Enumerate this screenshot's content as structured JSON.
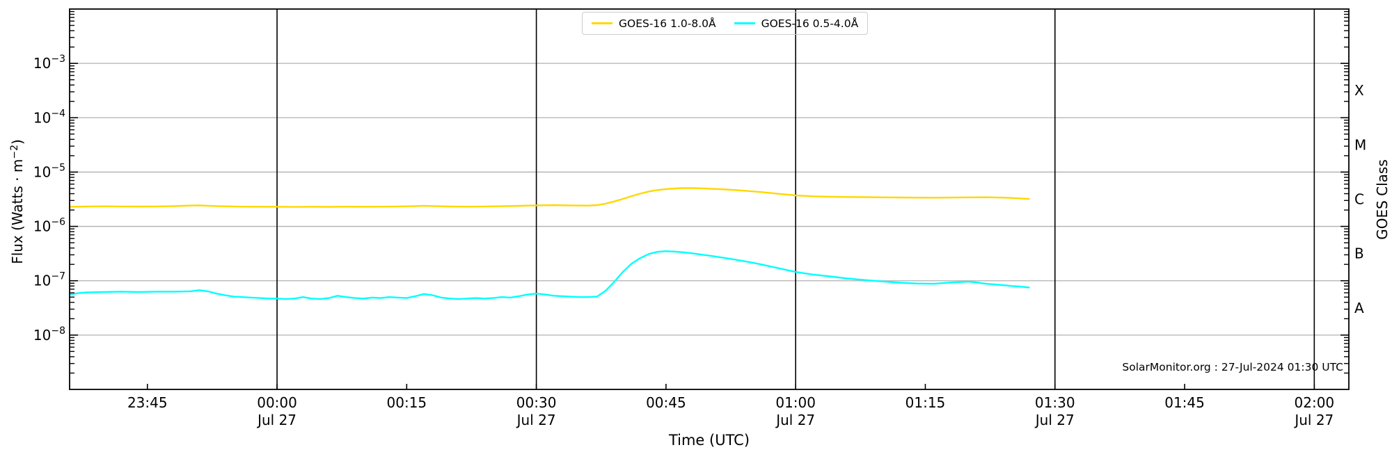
{
  "chart": {
    "annotation": "SolarMonitor.org : 27-Jul-2024 01:30 UTC"
  },
  "axes": {
    "xlabel": "Time (UTC)",
    "ylabel_prefix": "Flux (Watts · m",
    "ylabel_sup": "−2",
    "ylabel_suffix": ")",
    "right_label": "GOES Class"
  },
  "chart_data": {
    "type": "line",
    "title": "",
    "xlabel": "Time (UTC)",
    "ylabel": "Flux (Watts · m−2)",
    "right_axis_label": "GOES Class",
    "x_unit": "minutes relative to 00:00 UTC 27-Jul-2024",
    "xlim": [
      -24,
      124
    ],
    "ylim": [
      1e-09,
      0.01
    ],
    "grid": "horizontal-decades",
    "legend_position": "upper center",
    "colors": {
      "grid": "#b0b0b0",
      "frame": "#000000",
      "day_line": "#000000"
    },
    "y_tick_exponents": [
      -3,
      -4,
      -5,
      -6,
      -7,
      -8
    ],
    "x_ticks": [
      {
        "t": -15,
        "label": "23:45"
      },
      {
        "t": 0,
        "label": "00:00",
        "sub": "Jul 27"
      },
      {
        "t": 15,
        "label": "00:15"
      },
      {
        "t": 30,
        "label": "00:30",
        "sub": "Jul 27"
      },
      {
        "t": 45,
        "label": "00:45"
      },
      {
        "t": 60,
        "label": "01:00",
        "sub": "Jul 27"
      },
      {
        "t": 75,
        "label": "01:15"
      },
      {
        "t": 90,
        "label": "01:30",
        "sub": "Jul 27"
      },
      {
        "t": 105,
        "label": "01:45"
      },
      {
        "t": 120,
        "label": "02:00",
        "sub": "Jul 27"
      }
    ],
    "day_line_minutes": [
      0,
      30,
      60,
      90,
      120
    ],
    "goes_classes": [
      {
        "label": "A",
        "value": 3.162e-08
      },
      {
        "label": "B",
        "value": 3.162e-07
      },
      {
        "label": "C",
        "value": 3.162e-06
      },
      {
        "label": "M",
        "value": 3.162e-05
      },
      {
        "label": "X",
        "value": 0.0003162
      }
    ],
    "series": [
      {
        "name": "GOES-16 1.0-8.0Å",
        "color": "#FFD700",
        "points": [
          [
            -24,
            2.3e-06
          ],
          [
            -22,
            2.32e-06
          ],
          [
            -20,
            2.34e-06
          ],
          [
            -18,
            2.33e-06
          ],
          [
            -16,
            2.32e-06
          ],
          [
            -14,
            2.33e-06
          ],
          [
            -12,
            2.36e-06
          ],
          [
            -10,
            2.42e-06
          ],
          [
            -9,
            2.44e-06
          ],
          [
            -8,
            2.4e-06
          ],
          [
            -7,
            2.36e-06
          ],
          [
            -6,
            2.34e-06
          ],
          [
            -4,
            2.31e-06
          ],
          [
            -2,
            2.3e-06
          ],
          [
            0,
            2.3e-06
          ],
          [
            2,
            2.28e-06
          ],
          [
            4,
            2.3e-06
          ],
          [
            6,
            2.29e-06
          ],
          [
            8,
            2.31e-06
          ],
          [
            10,
            2.3e-06
          ],
          [
            12,
            2.31e-06
          ],
          [
            14,
            2.33e-06
          ],
          [
            16,
            2.36e-06
          ],
          [
            17,
            2.4e-06
          ],
          [
            18,
            2.37e-06
          ],
          [
            20,
            2.32e-06
          ],
          [
            22,
            2.31e-06
          ],
          [
            24,
            2.33e-06
          ],
          [
            26,
            2.35e-06
          ],
          [
            28,
            2.39e-06
          ],
          [
            30,
            2.43e-06
          ],
          [
            32,
            2.46e-06
          ],
          [
            34,
            2.43e-06
          ],
          [
            36,
            2.41e-06
          ],
          [
            37,
            2.46e-06
          ],
          [
            38,
            2.62e-06
          ],
          [
            39,
            2.88e-06
          ],
          [
            40,
            3.2e-06
          ],
          [
            41,
            3.6e-06
          ],
          [
            42,
            4e-06
          ],
          [
            43,
            4.38e-06
          ],
          [
            44,
            4.66e-06
          ],
          [
            45,
            4.86e-06
          ],
          [
            46,
            5e-06
          ],
          [
            47,
            5.06e-06
          ],
          [
            48,
            5.06e-06
          ],
          [
            49,
            5.02e-06
          ],
          [
            50,
            4.95e-06
          ],
          [
            52,
            4.78e-06
          ],
          [
            54,
            4.55e-06
          ],
          [
            56,
            4.28e-06
          ],
          [
            58,
            3.98e-06
          ],
          [
            60,
            3.72e-06
          ],
          [
            62,
            3.58e-06
          ],
          [
            64,
            3.52e-06
          ],
          [
            66,
            3.48e-06
          ],
          [
            68,
            3.45e-06
          ],
          [
            70,
            3.42e-06
          ],
          [
            72,
            3.4e-06
          ],
          [
            74,
            3.38e-06
          ],
          [
            76,
            3.37e-06
          ],
          [
            78,
            3.39e-06
          ],
          [
            80,
            3.42e-06
          ],
          [
            82,
            3.43e-06
          ],
          [
            84,
            3.38e-06
          ],
          [
            85,
            3.33e-06
          ],
          [
            86,
            3.27e-06
          ],
          [
            87,
            3.2e-06
          ]
        ]
      },
      {
        "name": "GOES-16 0.5-4.0Å",
        "color": "#00FFFF",
        "points": [
          [
            -24,
            5.6e-08
          ],
          [
            -23,
            5.9e-08
          ],
          [
            -22,
            6.1e-08
          ],
          [
            -20,
            6.2e-08
          ],
          [
            -18,
            6.3e-08
          ],
          [
            -16,
            6.2e-08
          ],
          [
            -14,
            6.3e-08
          ],
          [
            -12,
            6.3e-08
          ],
          [
            -10,
            6.4e-08
          ],
          [
            -9,
            6.7e-08
          ],
          [
            -8,
            6.4e-08
          ],
          [
            -7,
            5.8e-08
          ],
          [
            -6,
            5.4e-08
          ],
          [
            -5,
            5.1e-08
          ],
          [
            -4,
            5e-08
          ],
          [
            -3,
            4.9e-08
          ],
          [
            -2,
            4.8e-08
          ],
          [
            -1,
            4.7e-08
          ],
          [
            0,
            4.7e-08
          ],
          [
            1,
            4.6e-08
          ],
          [
            2,
            4.7e-08
          ],
          [
            3,
            5e-08
          ],
          [
            4,
            4.7e-08
          ],
          [
            5,
            4.6e-08
          ],
          [
            6,
            4.8e-08
          ],
          [
            7,
            5.3e-08
          ],
          [
            8,
            5e-08
          ],
          [
            9,
            4.8e-08
          ],
          [
            10,
            4.7e-08
          ],
          [
            11,
            4.9e-08
          ],
          [
            12,
            4.8e-08
          ],
          [
            13,
            5e-08
          ],
          [
            14,
            4.9e-08
          ],
          [
            15,
            4.8e-08
          ],
          [
            16,
            5.2e-08
          ],
          [
            17,
            5.7e-08
          ],
          [
            18,
            5.4e-08
          ],
          [
            19,
            4.9e-08
          ],
          [
            20,
            4.7e-08
          ],
          [
            21,
            4.6e-08
          ],
          [
            22,
            4.7e-08
          ],
          [
            23,
            4.8e-08
          ],
          [
            24,
            4.7e-08
          ],
          [
            25,
            4.8e-08
          ],
          [
            26,
            5e-08
          ],
          [
            27,
            4.9e-08
          ],
          [
            28,
            5.2e-08
          ],
          [
            29,
            5.6e-08
          ],
          [
            30,
            5.8e-08
          ],
          [
            31,
            5.6e-08
          ],
          [
            32,
            5.3e-08
          ],
          [
            33,
            5.2e-08
          ],
          [
            34,
            5.1e-08
          ],
          [
            35,
            5e-08
          ],
          [
            36,
            5e-08
          ],
          [
            37,
            5.1e-08
          ],
          [
            38,
            6.5e-08
          ],
          [
            39,
            9.5e-08
          ],
          [
            40,
            1.45e-07
          ],
          [
            41,
            2.05e-07
          ],
          [
            42,
            2.6e-07
          ],
          [
            43,
            3.1e-07
          ],
          [
            44,
            3.4e-07
          ],
          [
            45,
            3.5e-07
          ],
          [
            46,
            3.44e-07
          ],
          [
            47,
            3.34e-07
          ],
          [
            48,
            3.2e-07
          ],
          [
            49,
            3.05e-07
          ],
          [
            50,
            2.9e-07
          ],
          [
            52,
            2.6e-07
          ],
          [
            54,
            2.3e-07
          ],
          [
            56,
            2e-07
          ],
          [
            58,
            1.7e-07
          ],
          [
            60,
            1.45e-07
          ],
          [
            62,
            1.3e-07
          ],
          [
            64,
            1.2e-07
          ],
          [
            66,
            1.1e-07
          ],
          [
            68,
            1.03e-07
          ],
          [
            70,
            9.7e-08
          ],
          [
            72,
            9.2e-08
          ],
          [
            74,
            8.9e-08
          ],
          [
            76,
            8.8e-08
          ],
          [
            78,
            9.3e-08
          ],
          [
            80,
            9.6e-08
          ],
          [
            81,
            9.3e-08
          ],
          [
            82,
            8.8e-08
          ],
          [
            84,
            8.3e-08
          ],
          [
            85,
            8e-08
          ],
          [
            86,
            7.8e-08
          ],
          [
            87,
            7.5e-08
          ]
        ]
      }
    ]
  }
}
